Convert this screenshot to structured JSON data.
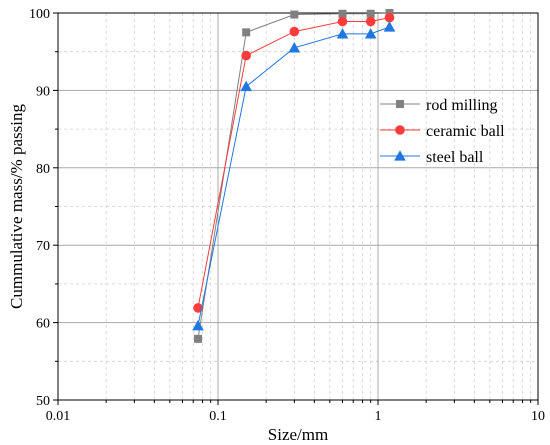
{
  "chart_data": {
    "type": "line",
    "xlabel": "Size/mm",
    "ylabel": "Cummulative mass/% passing",
    "xscale": "log",
    "xlim": [
      0.01,
      10
    ],
    "ylim": [
      50,
      100
    ],
    "xticks": [
      0.01,
      0.1,
      1,
      10
    ],
    "xtick_labels": [
      "0.01",
      "0.1",
      "1",
      "10"
    ],
    "yticks": [
      50,
      60,
      70,
      80,
      90,
      100
    ],
    "ytick_labels": [
      "50",
      "60",
      "70",
      "80",
      "90",
      "100"
    ],
    "grid": "major solid, minor dashed",
    "legend_position": "right, middle-upper",
    "x": [
      0.075,
      0.15,
      0.3,
      0.6,
      0.9,
      1.18
    ],
    "series": [
      {
        "name": "rod milling",
        "values": [
          57.9,
          97.5,
          99.8,
          99.9,
          99.9,
          100
        ],
        "color": "#808080",
        "marker": "square"
      },
      {
        "name": "ceramic ball",
        "values": [
          61.9,
          94.5,
          97.6,
          98.9,
          98.9,
          99.4
        ],
        "color": "#ff3b3b",
        "marker": "circle"
      },
      {
        "name": "steel ball",
        "values": [
          59.6,
          90.5,
          95.5,
          97.3,
          97.3,
          98.2
        ],
        "color": "#1f77e0",
        "marker": "triangle"
      }
    ]
  }
}
